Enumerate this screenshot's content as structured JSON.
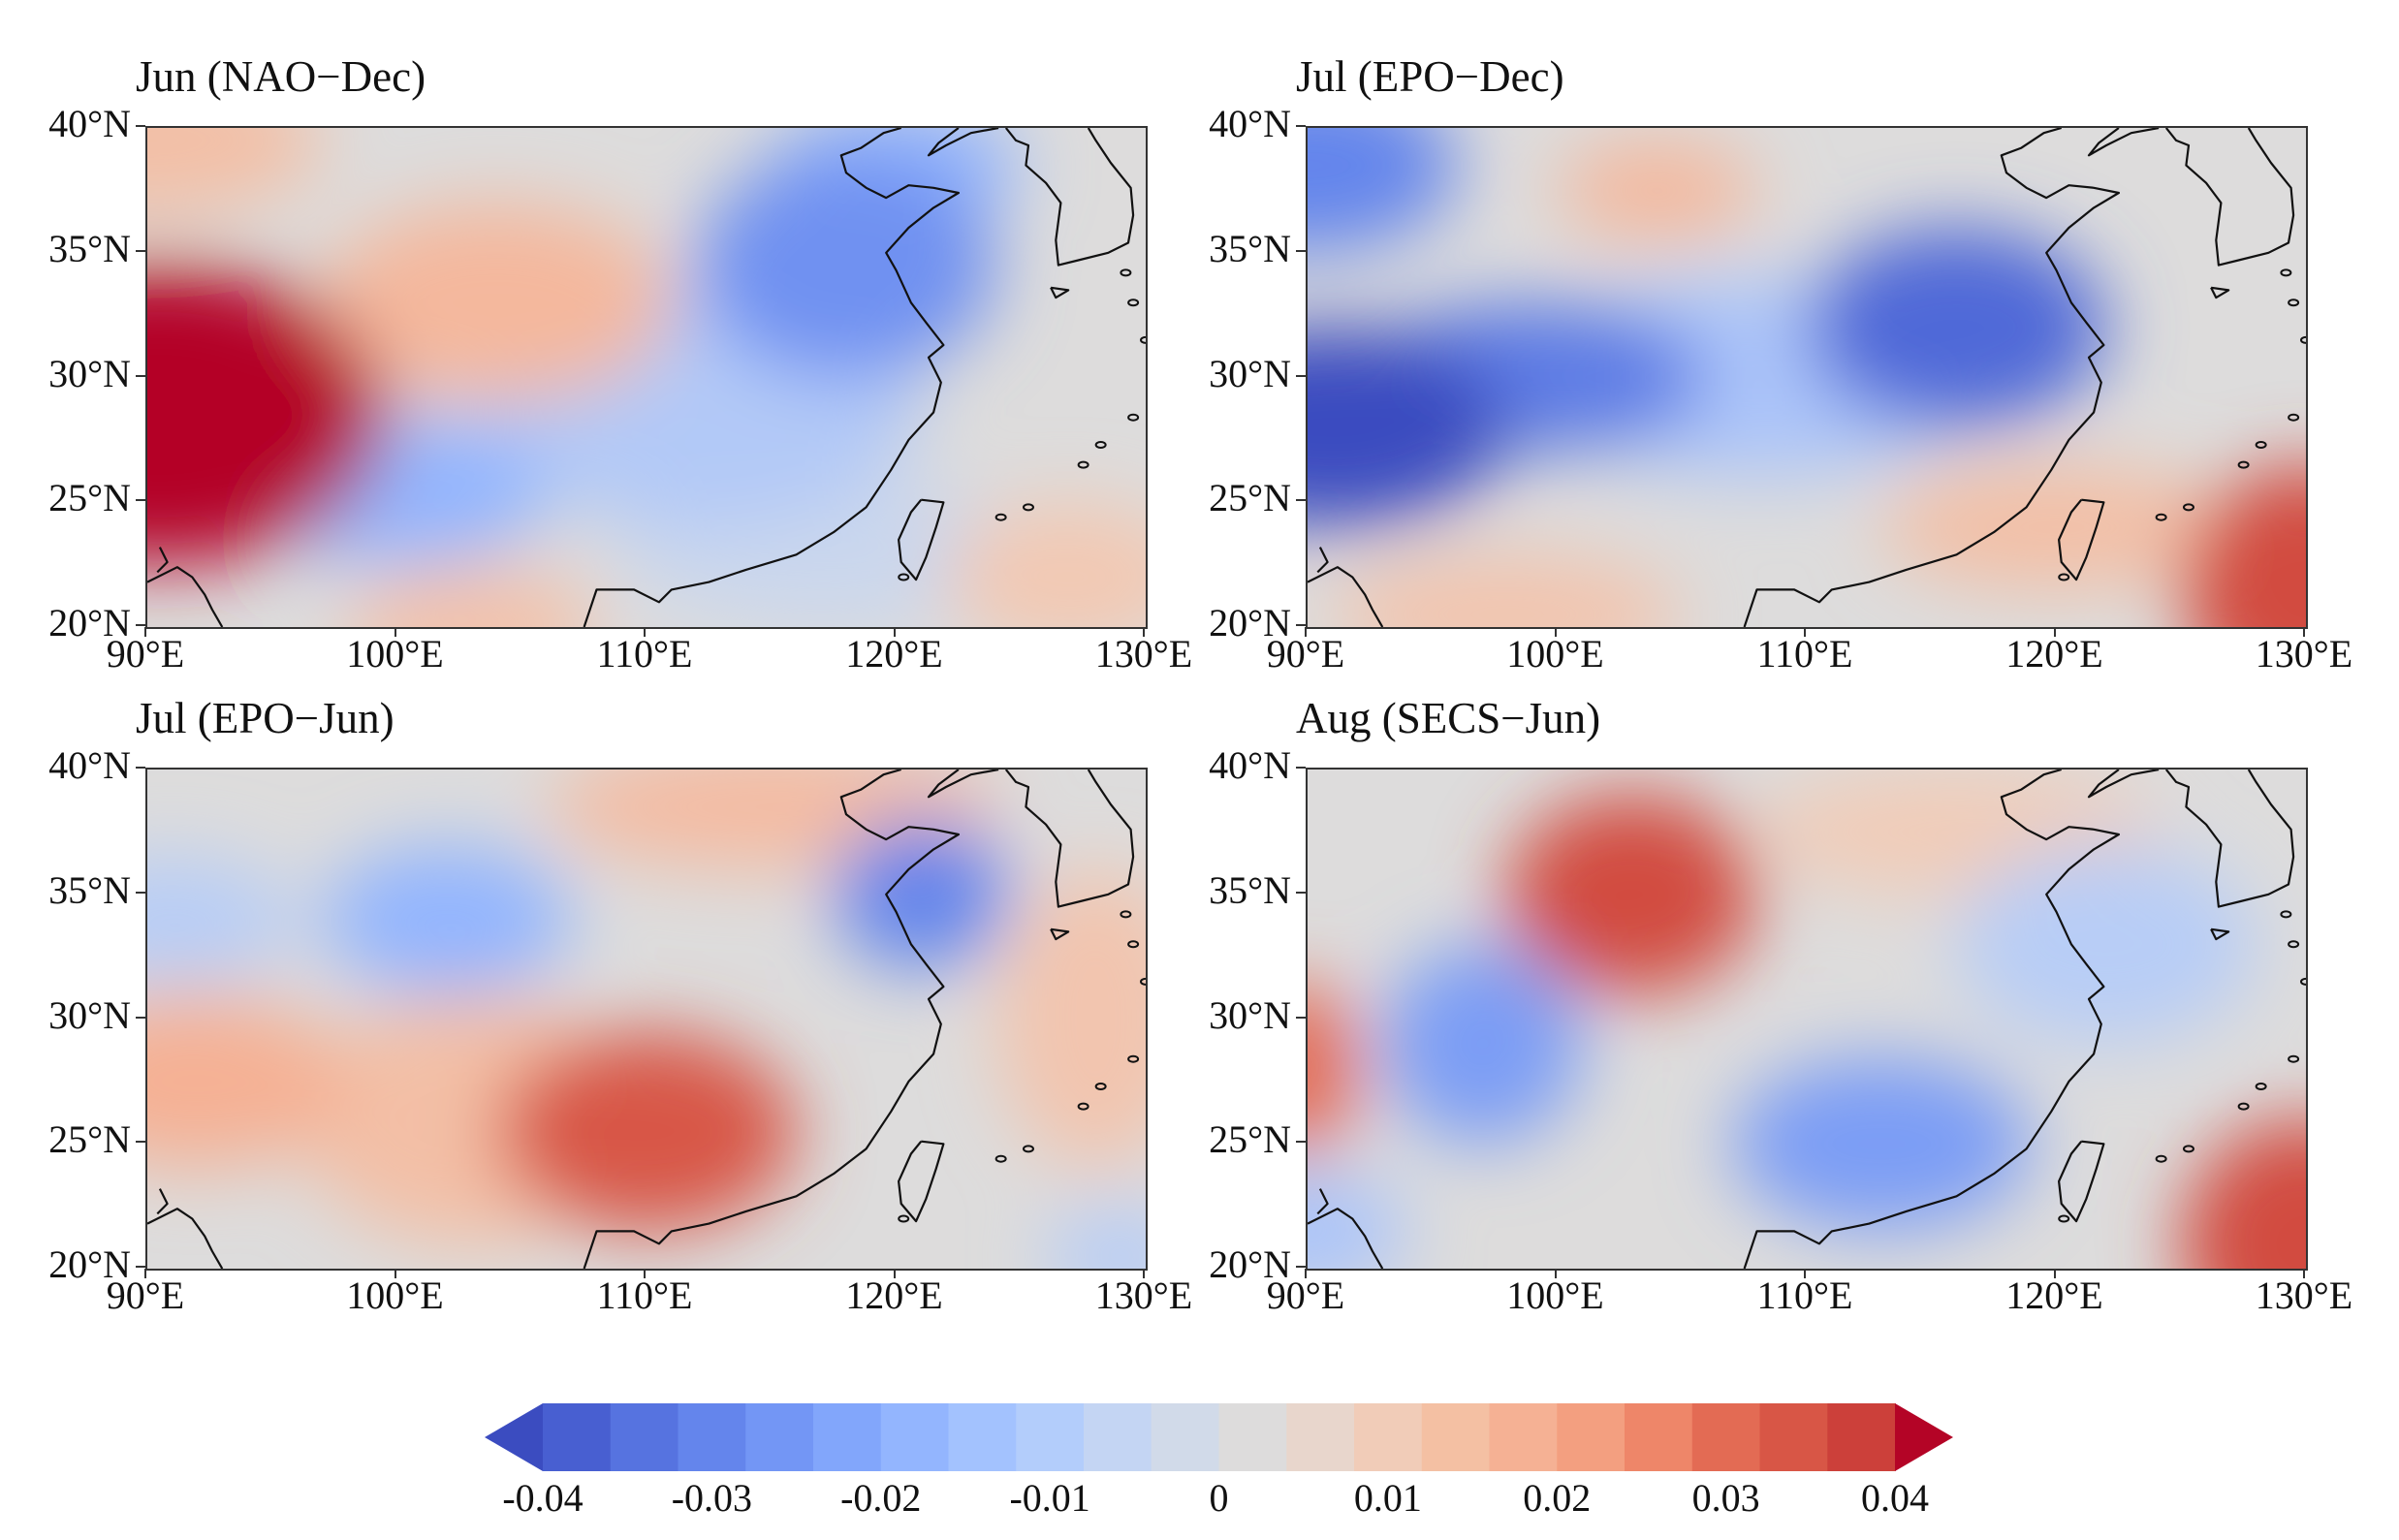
{
  "panels": [
    {
      "title": "Jun (NAO−Dec)",
      "blobs": [
        {
          "lon": 90.5,
          "lat": 28.5,
          "rx": 9,
          "ry": 6,
          "v": 0.062
        },
        {
          "lon": 104,
          "lat": 33,
          "rx": 7,
          "ry": 4,
          "v": 0.014
        },
        {
          "lon": 90,
          "lat": 39.5,
          "rx": 7,
          "ry": 3,
          "v": 0.012
        },
        {
          "lon": 103,
          "lat": 20,
          "rx": 5,
          "ry": 2.5,
          "v": 0.011
        },
        {
          "lon": 127,
          "lat": 22,
          "rx": 5,
          "ry": 3,
          "v": 0.009
        },
        {
          "lon": 118,
          "lat": 34.5,
          "rx": 6,
          "ry": 4.5,
          "v": -0.022
        },
        {
          "lon": 120,
          "lat": 38.5,
          "rx": 5,
          "ry": 2.5,
          "v": -0.016
        },
        {
          "lon": 100,
          "lat": 25.5,
          "rx": 6,
          "ry": 3,
          "v": -0.016
        },
        {
          "lon": 112,
          "lat": 29,
          "rx": 9,
          "ry": 5,
          "v": -0.011
        },
        {
          "lon": 117,
          "lat": 23,
          "rx": 8,
          "ry": 3,
          "v": -0.006
        }
      ]
    },
    {
      "title": "Jul (EPO−Dec)",
      "blobs": [
        {
          "lon": 91,
          "lat": 28,
          "rx": 7,
          "ry": 4,
          "v": -0.042
        },
        {
          "lon": 99,
          "lat": 30,
          "rx": 7,
          "ry": 3,
          "v": -0.026
        },
        {
          "lon": 90,
          "lat": 38.5,
          "rx": 6,
          "ry": 3.5,
          "v": -0.024
        },
        {
          "lon": 116,
          "lat": 32,
          "rx": 6,
          "ry": 4,
          "v": -0.03
        },
        {
          "lon": 108,
          "lat": 30,
          "rx": 9,
          "ry": 4,
          "v": -0.012
        },
        {
          "lon": 104,
          "lat": 37.5,
          "rx": 4,
          "ry": 2,
          "v": 0.014
        },
        {
          "lon": 130,
          "lat": 21.5,
          "rx": 5,
          "ry": 5,
          "v": 0.03
        },
        {
          "lon": 120,
          "lat": 24,
          "rx": 7,
          "ry": 2.5,
          "v": 0.012
        },
        {
          "lon": 98,
          "lat": 20.5,
          "rx": 7,
          "ry": 2.5,
          "v": 0.01
        }
      ]
    },
    {
      "title": "Jul (EPO−Jun)",
      "blobs": [
        {
          "lon": 110,
          "lat": 25.5,
          "rx": 6,
          "ry": 4,
          "v": 0.028
        },
        {
          "lon": 92,
          "lat": 27.5,
          "rx": 6,
          "ry": 3.5,
          "v": 0.016
        },
        {
          "lon": 103,
          "lat": 26,
          "rx": 7,
          "ry": 5,
          "v": 0.012
        },
        {
          "lon": 115,
          "lat": 38.5,
          "rx": 9,
          "ry": 2.5,
          "v": 0.013
        },
        {
          "lon": 128,
          "lat": 30,
          "rx": 4,
          "ry": 6,
          "v": 0.01
        },
        {
          "lon": 121,
          "lat": 35,
          "rx": 3.5,
          "ry": 3,
          "v": -0.024
        },
        {
          "lon": 102,
          "lat": 34,
          "rx": 5,
          "ry": 3,
          "v": -0.016
        },
        {
          "lon": 91,
          "lat": 34,
          "rx": 5,
          "ry": 2.5,
          "v": -0.01
        },
        {
          "lon": 129,
          "lat": 20.5,
          "rx": 3,
          "ry": 2,
          "v": -0.01
        }
      ]
    },
    {
      "title": "Aug (SECS−Jun)",
      "blobs": [
        {
          "lon": 103,
          "lat": 35,
          "rx": 5,
          "ry": 4,
          "v": 0.03
        },
        {
          "lon": 130,
          "lat": 21,
          "rx": 5,
          "ry": 5,
          "v": 0.03
        },
        {
          "lon": 89.5,
          "lat": 28,
          "rx": 2.5,
          "ry": 3.5,
          "v": 0.024
        },
        {
          "lon": 116,
          "lat": 37.5,
          "rx": 8,
          "ry": 2.5,
          "v": 0.008
        },
        {
          "lon": 97,
          "lat": 29,
          "rx": 4,
          "ry": 4,
          "v": -0.02
        },
        {
          "lon": 113,
          "lat": 25,
          "rx": 6,
          "ry": 3.5,
          "v": -0.02
        },
        {
          "lon": 122,
          "lat": 33,
          "rx": 6,
          "ry": 4,
          "v": -0.01
        },
        {
          "lon": 90,
          "lat": 21.5,
          "rx": 4,
          "ry": 2.5,
          "v": -0.012
        }
      ]
    }
  ],
  "axes": {
    "lat_labels": [
      "20°N",
      "25°N",
      "30°N",
      "35°N",
      "40°N"
    ],
    "lat_values": [
      20,
      25,
      30,
      35,
      40
    ],
    "lon_labels": [
      "90°E",
      "100°E",
      "110°E",
      "120°E",
      "130°E"
    ],
    "lon_values": [
      90,
      100,
      110,
      120,
      130
    ],
    "lon_range": [
      90,
      130
    ],
    "lat_range": [
      20,
      40
    ]
  },
  "colorbar": {
    "labels": [
      "-0.04",
      "-0.03",
      "-0.02",
      "-0.01",
      "0",
      "0.01",
      "0.02",
      "0.03",
      "0.04"
    ],
    "values": [
      -0.04,
      -0.03,
      -0.02,
      -0.01,
      0,
      0.01,
      0.02,
      0.03,
      0.04
    ],
    "colors": [
      "#3b4cc0",
      "#485fd1",
      "#5673e0",
      "#6485ec",
      "#7396f5",
      "#82a6fb",
      "#93b5fe",
      "#a3c2fe",
      "#b3cdfb",
      "#c4d5f3",
      "#d1dae9",
      "#dddcdc",
      "#e8d6cc",
      "#f1ccb8",
      "#f4c0a3",
      "#f5b194",
      "#f39f80",
      "#ee8669",
      "#e36b54",
      "#d85646",
      "#cc403a",
      "#b40426"
    ]
  }
}
